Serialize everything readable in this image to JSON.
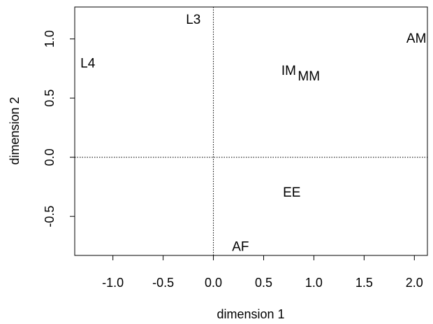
{
  "chart_data": {
    "type": "scatter",
    "title": "",
    "xlabel": "dimension 1",
    "ylabel": "dimension 2",
    "xlim": [
      -1.38,
      2.13
    ],
    "ylim": [
      -0.83,
      1.27
    ],
    "xticks": [
      -1.0,
      -0.5,
      0.0,
      0.5,
      1.0,
      1.5,
      2.0
    ],
    "xtick_labels": [
      "-1.0",
      "-0.5",
      "0.0",
      "0.5",
      "1.0",
      "1.5",
      "2.0"
    ],
    "yticks": [
      -0.5,
      0.0,
      0.5,
      1.0
    ],
    "ytick_labels": [
      "-0.5",
      "0.0",
      "0.5",
      "1.0"
    ],
    "reference_lines": {
      "x": 0,
      "y": 0,
      "style": "dotted"
    },
    "grid": false,
    "legend": "none",
    "points": [
      {
        "label": "L3",
        "x": -0.2,
        "y": 1.16
      },
      {
        "label": "L4",
        "x": -1.25,
        "y": 0.79
      },
      {
        "label": "AM",
        "x": 2.02,
        "y": 1.0
      },
      {
        "label": "IM",
        "x": 0.75,
        "y": 0.73
      },
      {
        "label": "MM",
        "x": 0.95,
        "y": 0.68
      },
      {
        "label": "EE",
        "x": 0.78,
        "y": -0.3
      },
      {
        "label": "AF",
        "x": 0.27,
        "y": -0.76
      }
    ],
    "colors": {
      "text": "#000000",
      "axes": "#000000",
      "background": "#ffffff"
    }
  }
}
